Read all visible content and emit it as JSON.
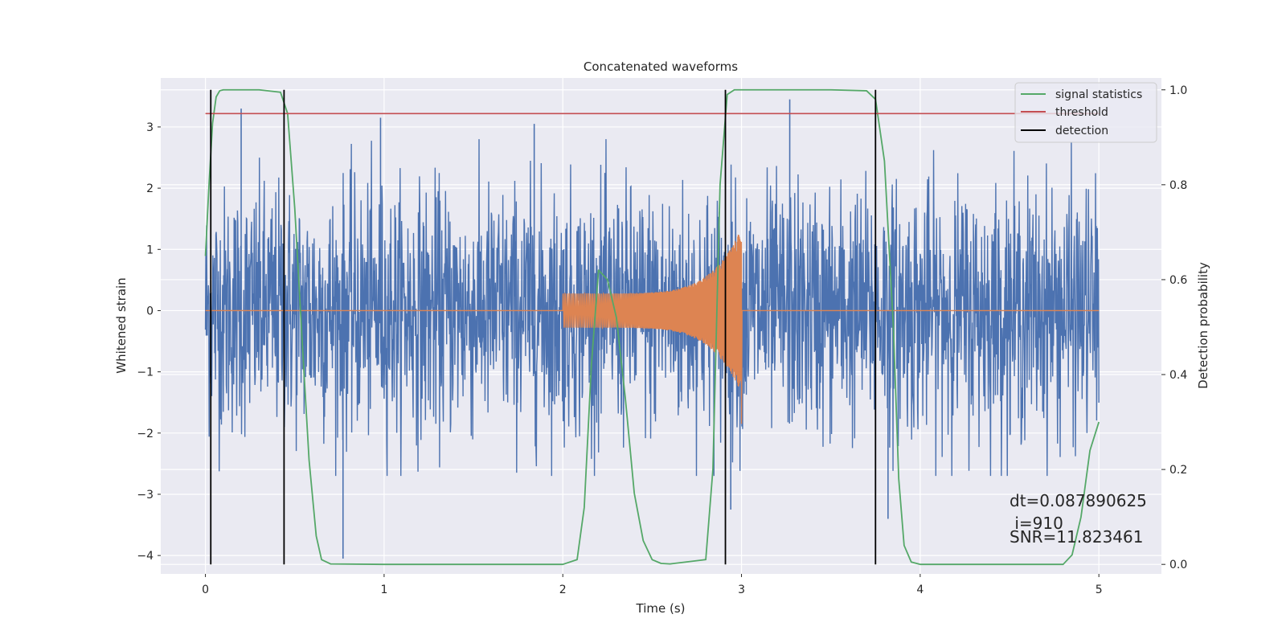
{
  "chart_data": {
    "type": "line",
    "title": "Concatenated waveforms",
    "xlabel": "Time (s)",
    "ylabel": "Whitened strain",
    "y2label": "Detection probability",
    "xlim": [
      -0.25,
      5.35
    ],
    "ylim": [
      -4.3,
      3.8
    ],
    "y2lim": [
      -0.02,
      1.025
    ],
    "xticks": [
      0,
      1,
      2,
      3,
      4,
      5
    ],
    "yticks": [
      -4,
      -3,
      -2,
      -1,
      0,
      1,
      2,
      3
    ],
    "y2ticks": [
      0.0,
      0.2,
      0.4,
      0.6,
      0.8,
      1.0
    ],
    "y2ticklabels": [
      "0.0",
      "0.2",
      "0.4",
      "0.6",
      "0.8",
      "1.0"
    ],
    "ytick_labels": [
      "−4",
      "−3",
      "−2",
      "−1",
      "0",
      "1",
      "2",
      "3"
    ],
    "grid": true,
    "legend_position": "top-right",
    "colors": {
      "strain": "#4c72b0",
      "template": "#dd8452",
      "signal_statistics": "#55a868",
      "threshold": "#c44e52",
      "detection": "#000000",
      "background": "#eaeaf2",
      "grid": "#ffffff"
    },
    "series": [
      {
        "name": "signal statistics",
        "axis": "right",
        "x": [
          0.0,
          0.02,
          0.04,
          0.06,
          0.08,
          0.1,
          0.15,
          0.3,
          0.42,
          0.46,
          0.5,
          0.54,
          0.58,
          0.62,
          0.65,
          0.7,
          1.0,
          1.5,
          2.0,
          2.08,
          2.12,
          2.16,
          2.2,
          2.25,
          2.3,
          2.35,
          2.4,
          2.45,
          2.5,
          2.55,
          2.6,
          2.8,
          2.84,
          2.88,
          2.92,
          2.96,
          3.0,
          3.5,
          3.7,
          3.75,
          3.8,
          3.85,
          3.88,
          3.91,
          3.95,
          4.0,
          4.5,
          4.8,
          4.85,
          4.9,
          4.95,
          5.0
        ],
        "values": [
          0.65,
          0.8,
          0.93,
          0.985,
          0.998,
          1.0,
          1.0,
          1.0,
          0.995,
          0.95,
          0.75,
          0.48,
          0.22,
          0.06,
          0.01,
          0.001,
          0.0,
          0.0,
          0.0,
          0.01,
          0.12,
          0.42,
          0.62,
          0.6,
          0.52,
          0.35,
          0.15,
          0.05,
          0.01,
          0.002,
          0.001,
          0.01,
          0.2,
          0.8,
          0.99,
          1.0,
          1.0,
          1.0,
          0.998,
          0.98,
          0.85,
          0.5,
          0.18,
          0.04,
          0.005,
          0.0,
          0.0,
          0.0,
          0.02,
          0.1,
          0.24,
          0.3
        ]
      },
      {
        "name": "threshold",
        "axis": "right",
        "x": [
          0.0,
          5.0
        ],
        "values": [
          0.95,
          0.95
        ]
      },
      {
        "name": "detection",
        "axis": "right",
        "vlines": [
          0.03,
          0.44,
          2.91,
          3.75
        ],
        "range": [
          0.0,
          1.0
        ]
      }
    ],
    "strain_series": {
      "axis": "left",
      "x_range": [
        0.0,
        5.0
      ],
      "typical_amplitude": 1.0,
      "extremes": [
        {
          "x": 0.2,
          "y": 3.3
        },
        {
          "x": 0.77,
          "y": -4.05
        },
        {
          "x": 0.98,
          "y": 3.15
        },
        {
          "x": 1.84,
          "y": 3.05
        },
        {
          "x": 3.27,
          "y": 3.45
        },
        {
          "x": 2.94,
          "y": -3.25
        },
        {
          "x": 3.82,
          "y": -3.4
        }
      ]
    },
    "template_series": {
      "axis": "left",
      "x_range": [
        0.0,
        5.0
      ],
      "chirp_start": 2.0,
      "chirp_end": 3.0,
      "start_amplitude": 0.28,
      "peak_amplitude": 1.35
    },
    "annotations": [
      "dt=0.087890625",
      " i=910",
      "SNR=11.823461"
    ]
  }
}
